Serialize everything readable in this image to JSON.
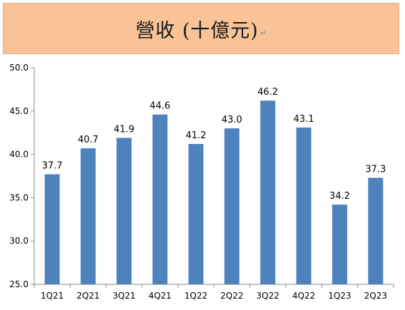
{
  "colors": {
    "banner_background": "#f9c397",
    "bar": "#4f81bd",
    "axis": "#8c8c8c"
  },
  "chart_data": {
    "type": "bar",
    "title": "營收 (十億元)",
    "title_mark": "↵",
    "categories": [
      "1Q21",
      "2Q21",
      "3Q21",
      "4Q21",
      "1Q22",
      "2Q22",
      "3Q22",
      "4Q22",
      "1Q23",
      "2Q23"
    ],
    "values": [
      37.7,
      40.7,
      41.9,
      44.6,
      41.2,
      43.0,
      46.2,
      43.1,
      34.2,
      37.3
    ],
    "value_labels": [
      "37.7",
      "40.7",
      "41.9",
      "44.6",
      "41.2",
      "43.0",
      "46.2",
      "43.1",
      "34.2",
      "37.3"
    ],
    "xlabel": "",
    "ylabel": "",
    "ylim": [
      25,
      50
    ],
    "yticks": [
      "25.0",
      "30.0",
      "35.0",
      "40.0",
      "45.0",
      "50.0"
    ],
    "grid": false,
    "legend": "none"
  }
}
